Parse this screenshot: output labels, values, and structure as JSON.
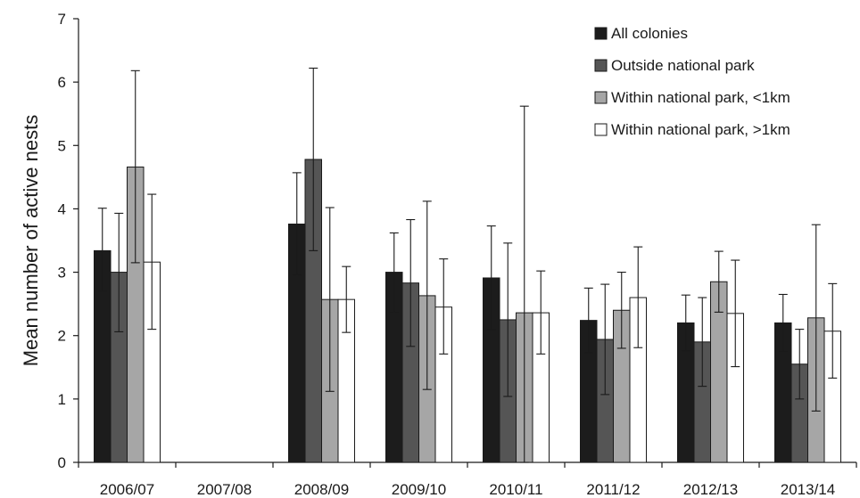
{
  "chart_data": {
    "type": "bar",
    "title": "",
    "ylabel": "Mean number of active nests",
    "xlabel": "",
    "ylim": [
      0,
      7
    ],
    "yticks": [
      0,
      1,
      2,
      3,
      4,
      5,
      6,
      7
    ],
    "grid": false,
    "legend_position": "top-right",
    "categories": [
      "2006/07",
      "2007/08",
      "2008/09",
      "2009/10",
      "2010/11",
      "2011/12",
      "2012/13",
      "2013/14"
    ],
    "series": [
      {
        "name": "All colonies",
        "color": "#1c1c1c",
        "values": [
          3.34,
          null,
          3.76,
          3.0,
          2.91,
          2.24,
          2.2,
          2.2
        ],
        "err_low": [
          2.7,
          null,
          2.96,
          2.37,
          2.09,
          1.73,
          1.76,
          1.75
        ],
        "err_high": [
          4.01,
          null,
          4.57,
          3.62,
          3.73,
          2.75,
          2.64,
          2.65
        ]
      },
      {
        "name": "Outside national park",
        "color": "#555555",
        "values": [
          3.0,
          null,
          4.78,
          2.83,
          2.25,
          1.94,
          1.9,
          1.55
        ],
        "err_low": [
          2.06,
          null,
          3.34,
          1.83,
          1.04,
          1.07,
          1.2,
          1.0
        ],
        "err_high": [
          3.93,
          null,
          6.22,
          3.83,
          3.46,
          2.81,
          2.6,
          2.1
        ]
      },
      {
        "name": "Within national park, <1km",
        "color": "#a6a6a6",
        "values": [
          4.66,
          null,
          2.57,
          2.63,
          2.36,
          2.4,
          2.85,
          2.28
        ],
        "err_low": [
          3.15,
          null,
          1.12,
          1.15,
          0.0,
          1.8,
          2.37,
          0.81
        ],
        "err_high": [
          6.18,
          null,
          4.02,
          4.12,
          5.62,
          3.0,
          3.33,
          3.75
        ]
      },
      {
        "name": "Within national park, >1km",
        "color": "#ffffff",
        "values": [
          3.16,
          null,
          2.57,
          2.45,
          2.36,
          2.6,
          2.35,
          2.07
        ],
        "err_low": [
          2.1,
          null,
          2.05,
          1.71,
          1.71,
          1.81,
          1.51,
          1.33
        ],
        "err_high": [
          4.23,
          null,
          3.09,
          3.21,
          3.02,
          3.4,
          3.19,
          2.82
        ]
      }
    ]
  }
}
